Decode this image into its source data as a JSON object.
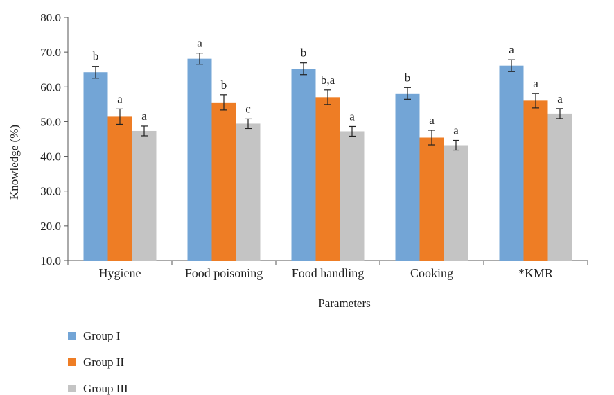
{
  "chart_data": {
    "type": "bar",
    "categories": [
      "Hygiene",
      "Food poisoning",
      "Food handling",
      "Cooking",
      "*KMR"
    ],
    "series": [
      {
        "name": "Group I",
        "color": "#73A5D6",
        "values": [
          64.2,
          68.1,
          65.2,
          58.1,
          66.1
        ],
        "errors": [
          1.7,
          1.6,
          1.7,
          1.7,
          1.7
        ],
        "sig_labels": [
          "b",
          "a",
          "b",
          "b",
          "a"
        ]
      },
      {
        "name": "Group II",
        "color": "#EE7D25",
        "values": [
          51.4,
          55.5,
          57.0,
          45.4,
          56.0
        ],
        "errors": [
          2.2,
          2.2,
          2.1,
          2.1,
          2.1
        ],
        "sig_labels": [
          "a",
          "b",
          "b,a",
          "a",
          "a"
        ]
      },
      {
        "name": "Group III",
        "color": "#C4C4C4",
        "values": [
          47.3,
          49.4,
          47.2,
          43.2,
          52.3
        ],
        "errors": [
          1.4,
          1.4,
          1.4,
          1.4,
          1.4
        ],
        "sig_labels": [
          "a",
          "c",
          "a",
          "a",
          "a"
        ]
      }
    ],
    "xlabel": "Parameters",
    "ylabel": "Knowledge (%)",
    "ylim": [
      10.0,
      80.0
    ],
    "yticks": [
      "10.0",
      "20.0",
      "30.0",
      "40.0",
      "50.0",
      "60.0",
      "70.0",
      "80.0"
    ],
    "grid": false,
    "legend_position": "bottom-left"
  }
}
